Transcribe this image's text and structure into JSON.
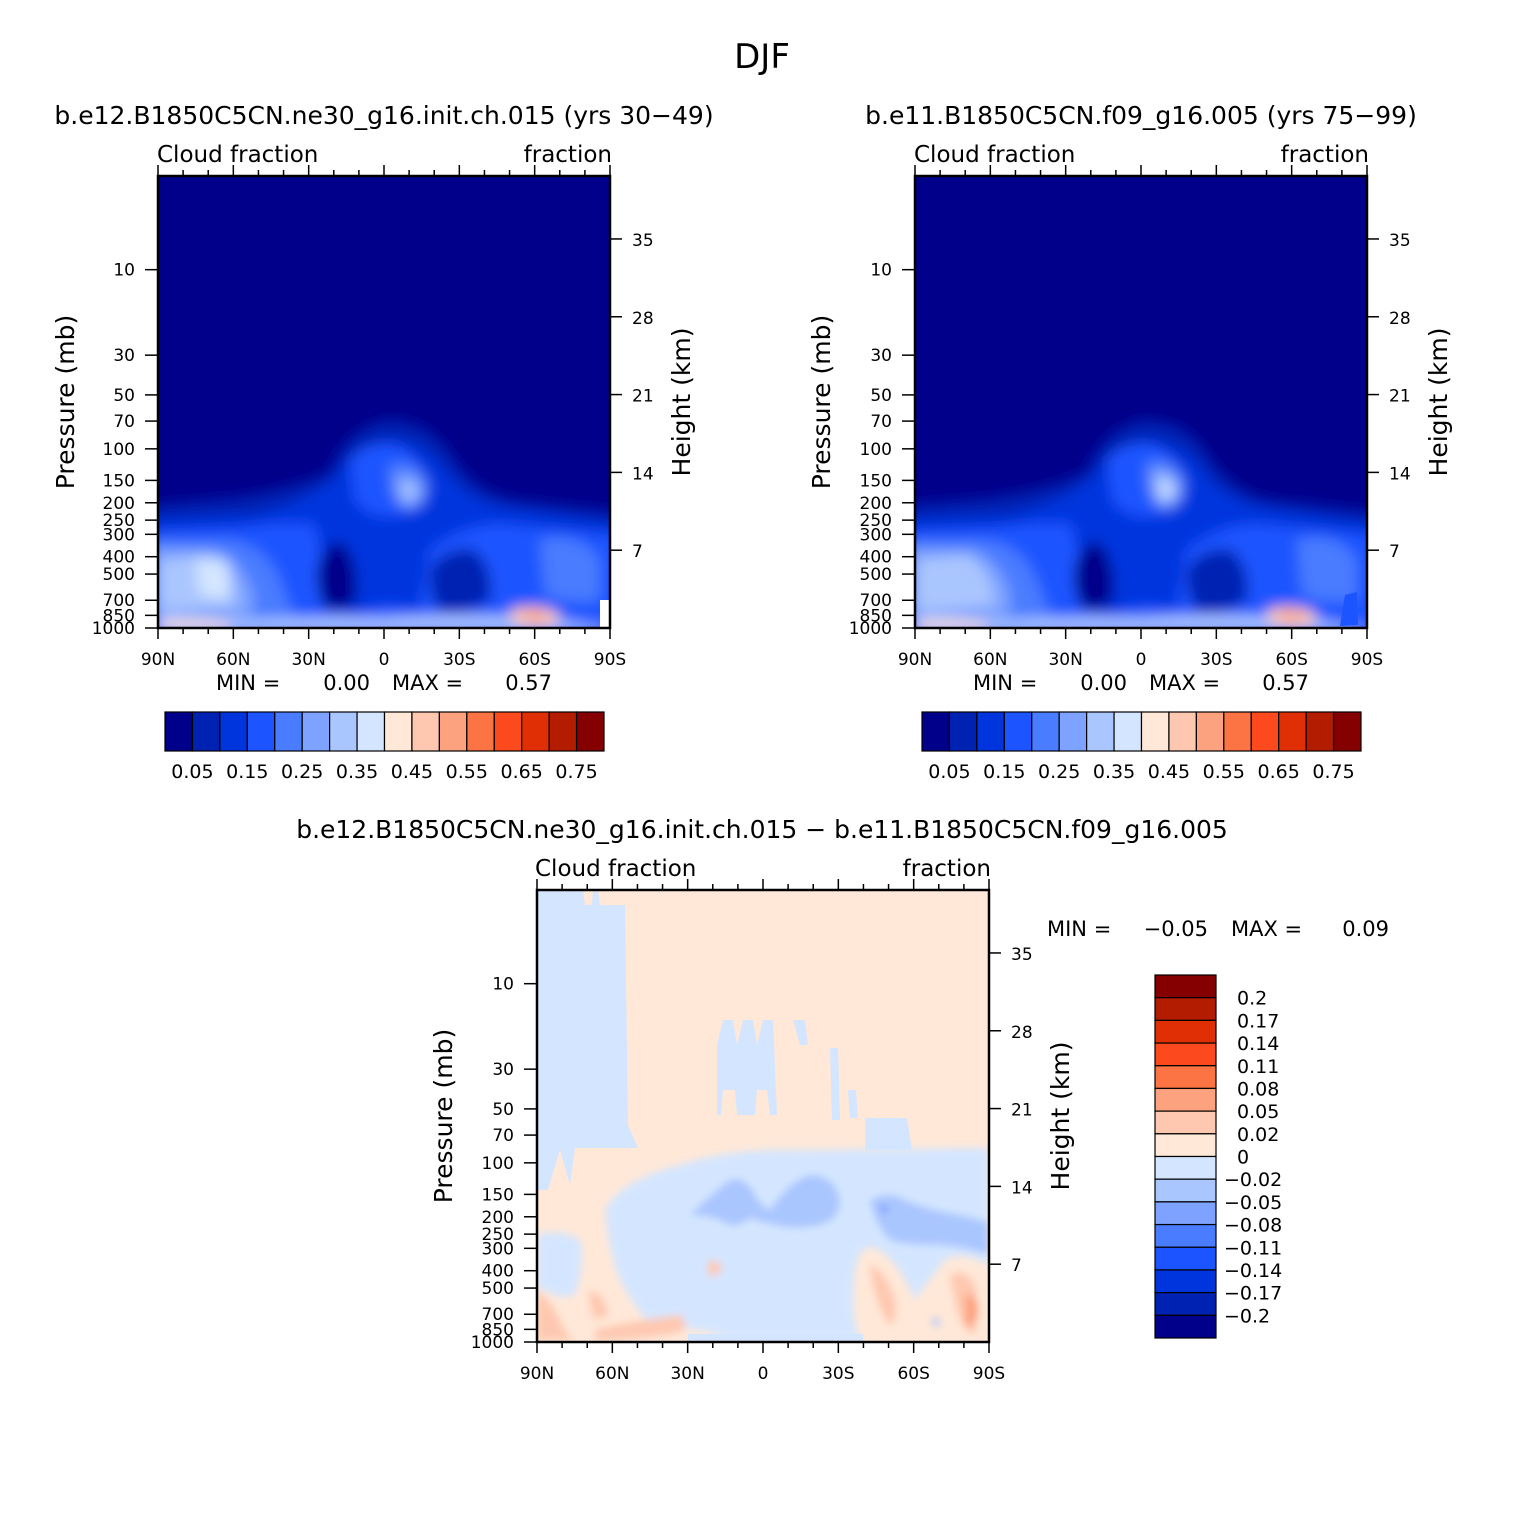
{
  "figure": {
    "title": "DJF"
  },
  "chart_data": [
    {
      "type": "heatmap",
      "title": "b.e12.B1850C5CN.ne30_g16.init.ch.015 (yrs 30-49)",
      "left_label": "Cloud fraction",
      "right_label": "fraction",
      "xlabel": "",
      "ylabel": "Pressure (mb)",
      "y2label": "Height (km)",
      "x_ticks": [
        "90N",
        "60N",
        "30N",
        "0",
        "30S",
        "60S",
        "90S"
      ],
      "y_ticks": [
        "10",
        "30",
        "50",
        "70",
        "100",
        "150",
        "200",
        "250",
        "300",
        "400",
        "500",
        "700",
        "850",
        "1000"
      ],
      "y2_ticks": [
        "35",
        "28",
        "21",
        "14",
        "7"
      ],
      "ylim": [
        1000,
        3
      ],
      "min_label": "MIN =",
      "min_value": "0.00",
      "max_label": "MAX =",
      "max_value": "0.57",
      "min": 0.0,
      "max": 0.57,
      "colorbar": {
        "orientation": "horizontal",
        "labels": [
          "0.05",
          "0.15",
          "0.25",
          "0.35",
          "0.45",
          "0.55",
          "0.65",
          "0.75"
        ],
        "colors": [
          "#00008a",
          "#0022b2",
          "#0035de",
          "#1c55ff",
          "#4a7cff",
          "#7ea2ff",
          "#aac6ff",
          "#d4e6ff",
          "#ffe8d8",
          "#fec8b0",
          "#fca27e",
          "#fc7443",
          "#fc4a1e",
          "#e12f05",
          "#b41c00",
          "#850000"
        ]
      }
    },
    {
      "type": "heatmap",
      "title": "b.e11.B1850C5CN.f09_g16.005 (yrs 75-99)",
      "left_label": "Cloud fraction",
      "right_label": "fraction",
      "xlabel": "",
      "ylabel": "Pressure (mb)",
      "y2label": "Height (km)",
      "x_ticks": [
        "90N",
        "60N",
        "30N",
        "0",
        "30S",
        "60S",
        "90S"
      ],
      "y_ticks": [
        "10",
        "30",
        "50",
        "70",
        "100",
        "150",
        "200",
        "250",
        "300",
        "400",
        "500",
        "700",
        "850",
        "1000"
      ],
      "y2_ticks": [
        "35",
        "28",
        "21",
        "14",
        "7"
      ],
      "ylim": [
        1000,
        3
      ],
      "min_label": "MIN =",
      "min_value": "0.00",
      "max_label": "MAX =",
      "max_value": "0.57",
      "min": 0.0,
      "max": 0.57,
      "colorbar": {
        "orientation": "horizontal",
        "labels": [
          "0.05",
          "0.15",
          "0.25",
          "0.35",
          "0.45",
          "0.55",
          "0.65",
          "0.75"
        ],
        "colors": [
          "#00008a",
          "#0022b2",
          "#0035de",
          "#1c55ff",
          "#4a7cff",
          "#7ea2ff",
          "#aac6ff",
          "#d4e6ff",
          "#ffe8d8",
          "#fec8b0",
          "#fca27e",
          "#fc7443",
          "#fc4a1e",
          "#e12f05",
          "#b41c00",
          "#850000"
        ]
      }
    },
    {
      "type": "heatmap",
      "title": "b.e12.B1850C5CN.ne30_g16.init.ch.015 - b.e11.B1850C5CN.f09_g16.005",
      "left_label": "Cloud fraction",
      "right_label": "fraction",
      "xlabel": "",
      "ylabel": "Pressure (mb)",
      "y2label": "Height (km)",
      "x_ticks": [
        "90N",
        "60N",
        "30N",
        "0",
        "30S",
        "60S",
        "90S"
      ],
      "y_ticks": [
        "10",
        "30",
        "50",
        "70",
        "100",
        "150",
        "200",
        "250",
        "300",
        "400",
        "500",
        "700",
        "850",
        "1000"
      ],
      "y2_ticks": [
        "35",
        "28",
        "21",
        "14",
        "7"
      ],
      "ylim": [
        1000,
        3
      ],
      "min_label": "MIN =",
      "min_value": "-0.05",
      "max_label": "MAX =",
      "max_value": "0.09",
      "min": -0.05,
      "max": 0.09,
      "colorbar": {
        "orientation": "vertical",
        "labels": [
          "0.2",
          "0.17",
          "0.14",
          "0.11",
          "0.08",
          "0.05",
          "0.02",
          "0",
          "-0.02",
          "-0.05",
          "-0.08",
          "-0.11",
          "-0.14",
          "-0.17",
          "-0.2"
        ],
        "colors": [
          "#850000",
          "#b41c00",
          "#e12f05",
          "#fc4a1e",
          "#fc7443",
          "#fca27e",
          "#fec8b0",
          "#ffe8d8",
          "#d4e6ff",
          "#aac6ff",
          "#7ea2ff",
          "#4a7cff",
          "#1c55ff",
          "#0035de",
          "#0022b2",
          "#00008a"
        ]
      }
    }
  ]
}
